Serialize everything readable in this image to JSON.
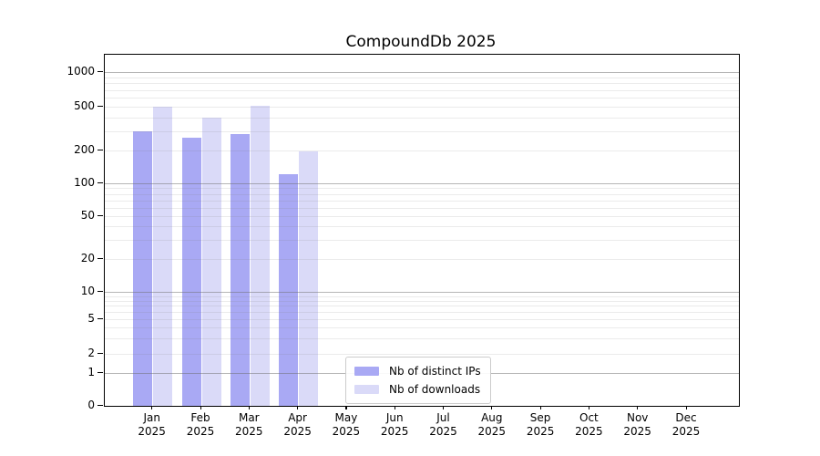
{
  "app": {
    "title": "CompoundDb 2025"
  },
  "colors": {
    "distinct_ips": "#a9a9f4",
    "downloads": "#dadaf8",
    "axis": "#000000",
    "major_grid": "#b0b0b0",
    "minor_grid": "#e8e8e8",
    "legend_border": "#cccccc"
  },
  "legend": {
    "items": [
      {
        "key": "distinct_ips",
        "label": "Nb of distinct IPs"
      },
      {
        "key": "downloads",
        "label": "Nb of downloads"
      }
    ]
  },
  "chart_data": {
    "type": "bar",
    "title": "CompoundDb 2025",
    "categories": [
      "Jan 2025",
      "Feb 2025",
      "Mar 2025",
      "Apr 2025",
      "May 2025",
      "Jun 2025",
      "Jul 2025",
      "Aug 2025",
      "Sep 2025",
      "Oct 2025",
      "Nov 2025",
      "Dec 2025"
    ],
    "series": [
      {
        "name": "Nb of distinct IPs",
        "key": "distinct_ips",
        "values": [
          300,
          260,
          280,
          122,
          0,
          0,
          0,
          0,
          0,
          0,
          0,
          0
        ]
      },
      {
        "name": "Nb of downloads",
        "key": "downloads",
        "values": [
          500,
          400,
          505,
          197,
          0,
          0,
          0,
          0,
          0,
          0,
          0,
          0
        ]
      }
    ],
    "yscale": "symlog",
    "yticks": [
      0,
      1,
      2,
      5,
      10,
      20,
      50,
      100,
      200,
      500,
      1000
    ],
    "minor_gridline_values": [
      3,
      4,
      6,
      7,
      8,
      9,
      30,
      40,
      60,
      70,
      80,
      90,
      300,
      400,
      600,
      700,
      800,
      900
    ],
    "major_gridline_values": [
      1,
      10,
      100,
      1000
    ],
    "ylim": [
      0,
      1400
    ],
    "xlabel": "",
    "ylabel": "",
    "grid": "both",
    "legend_position": "lower center"
  }
}
